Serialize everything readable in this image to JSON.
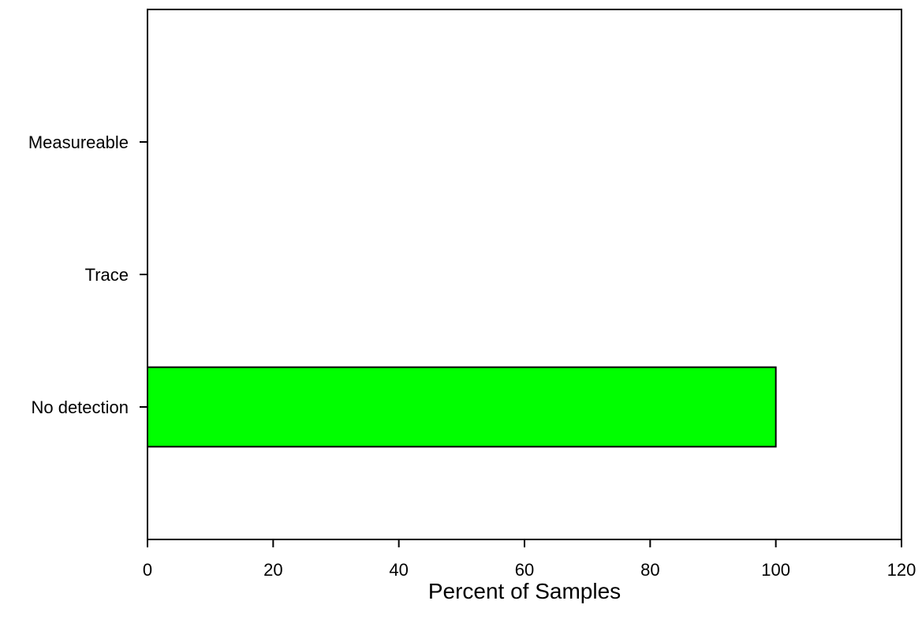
{
  "chart_data": {
    "type": "bar",
    "orientation": "horizontal",
    "categories": [
      "No detection",
      "Trace",
      "Measureable"
    ],
    "values": [
      100,
      0,
      0
    ],
    "xlabel": "Percent of Samples",
    "ylabel": "",
    "xlim": [
      0,
      120
    ],
    "xticks": [
      0,
      20,
      40,
      60,
      80,
      100,
      120
    ],
    "grid": false,
    "bar_color": "#00ff00",
    "bar_edge_color": "#000000"
  }
}
